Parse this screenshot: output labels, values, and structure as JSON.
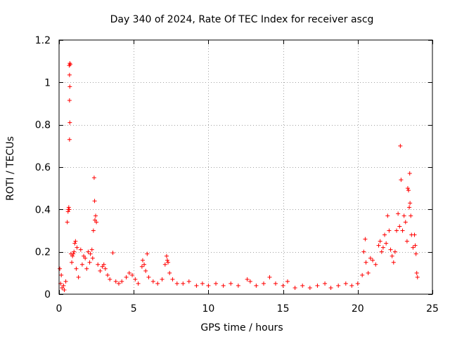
{
  "chart_data": {
    "type": "scatter",
    "title": "Day 340 of 2024, Rate Of TEC Index for receiver ascg",
    "xlabel": "GPS time / hours",
    "ylabel": "ROTI / TECUs",
    "xlim": [
      0,
      25
    ],
    "ylim": [
      0,
      1.2
    ],
    "xticks": [
      0,
      5,
      10,
      15,
      20,
      25
    ],
    "xtick_labels": [
      "0",
      "5",
      "10",
      "15",
      "20",
      "25"
    ],
    "yticks": [
      0,
      0.2,
      0.4,
      0.6,
      0.8,
      1.0,
      1.2
    ],
    "ytick_labels": [
      "0",
      "0.2",
      "0.4",
      "0.6",
      "0.8",
      "1",
      "1.2"
    ],
    "grid": true,
    "marker": "+",
    "color": "#ff0000",
    "series": [
      {
        "name": "ROTI",
        "points": [
          [
            0.05,
            0.12
          ],
          [
            0.1,
            0.05
          ],
          [
            0.15,
            0.09
          ],
          [
            0.2,
            0.03
          ],
          [
            0.3,
            0.04
          ],
          [
            0.35,
            0.02
          ],
          [
            0.45,
            0.06
          ],
          [
            0.55,
            0.34
          ],
          [
            0.6,
            0.39
          ],
          [
            0.62,
            0.4
          ],
          [
            0.65,
            0.41
          ],
          [
            0.68,
            0.4
          ],
          [
            0.7,
            0.73
          ],
          [
            0.72,
            0.81
          ],
          [
            0.7,
            0.915
          ],
          [
            0.72,
            0.98
          ],
          [
            0.7,
            1.035
          ],
          [
            0.68,
            1.08
          ],
          [
            0.72,
            1.09
          ],
          [
            0.75,
            1.085
          ],
          [
            0.8,
            0.19
          ],
          [
            0.85,
            0.15
          ],
          [
            0.9,
            0.18
          ],
          [
            0.95,
            0.19
          ],
          [
            1.0,
            0.2
          ],
          [
            1.05,
            0.24
          ],
          [
            1.1,
            0.25
          ],
          [
            1.15,
            0.12
          ],
          [
            1.2,
            0.22
          ],
          [
            1.3,
            0.08
          ],
          [
            1.45,
            0.21
          ],
          [
            1.55,
            0.14
          ],
          [
            1.65,
            0.18
          ],
          [
            1.75,
            0.17
          ],
          [
            1.85,
            0.12
          ],
          [
            1.95,
            0.2
          ],
          [
            2.05,
            0.15
          ],
          [
            2.1,
            0.19
          ],
          [
            2.2,
            0.21
          ],
          [
            2.25,
            0.17
          ],
          [
            2.3,
            0.3
          ],
          [
            2.35,
            0.55
          ],
          [
            2.38,
            0.44
          ],
          [
            2.4,
            0.35
          ],
          [
            2.45,
            0.37
          ],
          [
            2.5,
            0.34
          ],
          [
            2.6,
            0.14
          ],
          [
            2.75,
            0.11
          ],
          [
            2.9,
            0.13
          ],
          [
            3.0,
            0.14
          ],
          [
            3.1,
            0.12
          ],
          [
            3.25,
            0.09
          ],
          [
            3.4,
            0.07
          ],
          [
            3.6,
            0.195
          ],
          [
            3.8,
            0.06
          ],
          [
            4.0,
            0.05
          ],
          [
            4.2,
            0.06
          ],
          [
            4.5,
            0.08
          ],
          [
            4.7,
            0.1
          ],
          [
            4.9,
            0.09
          ],
          [
            5.1,
            0.07
          ],
          [
            5.3,
            0.05
          ],
          [
            5.55,
            0.13
          ],
          [
            5.6,
            0.16
          ],
          [
            5.7,
            0.14
          ],
          [
            5.8,
            0.11
          ],
          [
            5.9,
            0.19
          ],
          [
            6.0,
            0.08
          ],
          [
            6.3,
            0.06
          ],
          [
            6.6,
            0.05
          ],
          [
            6.9,
            0.07
          ],
          [
            7.1,
            0.14
          ],
          [
            7.2,
            0.18
          ],
          [
            7.25,
            0.16
          ],
          [
            7.3,
            0.15
          ],
          [
            7.4,
            0.1
          ],
          [
            7.6,
            0.07
          ],
          [
            7.9,
            0.05
          ],
          [
            8.3,
            0.05
          ],
          [
            8.7,
            0.06
          ],
          [
            9.2,
            0.04
          ],
          [
            9.6,
            0.05
          ],
          [
            10.0,
            0.04
          ],
          [
            10.5,
            0.05
          ],
          [
            11.0,
            0.04
          ],
          [
            11.5,
            0.05
          ],
          [
            12.0,
            0.04
          ],
          [
            12.6,
            0.07
          ],
          [
            12.8,
            0.06
          ],
          [
            13.2,
            0.04
          ],
          [
            13.7,
            0.05
          ],
          [
            14.1,
            0.08
          ],
          [
            14.5,
            0.05
          ],
          [
            15.0,
            0.04
          ],
          [
            15.3,
            0.06
          ],
          [
            15.8,
            0.03
          ],
          [
            16.3,
            0.04
          ],
          [
            16.8,
            0.03
          ],
          [
            17.3,
            0.04
          ],
          [
            17.8,
            0.05
          ],
          [
            18.2,
            0.03
          ],
          [
            18.7,
            0.04
          ],
          [
            19.2,
            0.05
          ],
          [
            19.6,
            0.04
          ],
          [
            20.0,
            0.05
          ],
          [
            20.3,
            0.09
          ],
          [
            20.4,
            0.2
          ],
          [
            20.5,
            0.26
          ],
          [
            20.55,
            0.15
          ],
          [
            20.7,
            0.1
          ],
          [
            20.85,
            0.17
          ],
          [
            21.0,
            0.16
          ],
          [
            21.2,
            0.14
          ],
          [
            21.4,
            0.23
          ],
          [
            21.5,
            0.25
          ],
          [
            21.6,
            0.2
          ],
          [
            21.7,
            0.22
          ],
          [
            21.8,
            0.28
          ],
          [
            21.9,
            0.24
          ],
          [
            22.0,
            0.37
          ],
          [
            22.1,
            0.3
          ],
          [
            22.2,
            0.21
          ],
          [
            22.3,
            0.18
          ],
          [
            22.4,
            0.15
          ],
          [
            22.5,
            0.2
          ],
          [
            22.6,
            0.3
          ],
          [
            22.7,
            0.38
          ],
          [
            22.8,
            0.32
          ],
          [
            22.85,
            0.7
          ],
          [
            22.9,
            0.54
          ],
          [
            23.0,
            0.3
          ],
          [
            23.1,
            0.37
          ],
          [
            23.2,
            0.34
          ],
          [
            23.3,
            0.25
          ],
          [
            23.35,
            0.5
          ],
          [
            23.4,
            0.49
          ],
          [
            23.45,
            0.41
          ],
          [
            23.48,
            0.57
          ],
          [
            23.5,
            0.43
          ],
          [
            23.55,
            0.37
          ],
          [
            23.6,
            0.28
          ],
          [
            23.7,
            0.22
          ],
          [
            23.8,
            0.28
          ],
          [
            23.85,
            0.23
          ],
          [
            23.9,
            0.19
          ],
          [
            23.95,
            0.1
          ],
          [
            24.0,
            0.08
          ]
        ]
      }
    ]
  }
}
